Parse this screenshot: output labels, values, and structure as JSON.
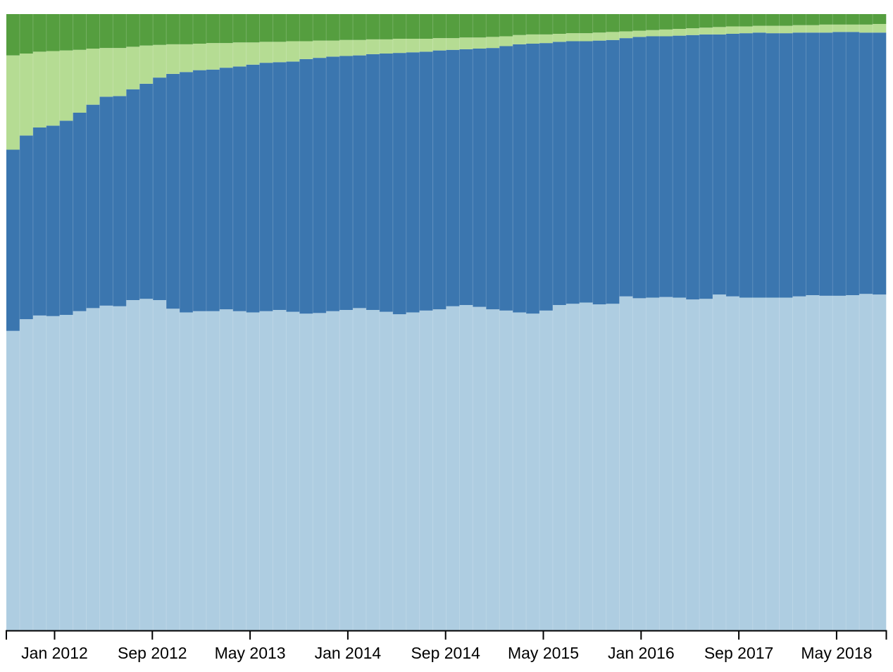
{
  "chart_data": {
    "type": "bar",
    "stacked": true,
    "normalized": true,
    "ylim": [
      0,
      1
    ],
    "x_range": [
      "2011-09",
      "2018-10"
    ],
    "x_ticks": [
      "Jan 2012",
      "Sep 2012",
      "May 2013",
      "Jan 2014",
      "Sep 2014",
      "May 2015",
      "Jan 2016",
      "Sep 2017",
      "May 2018"
    ],
    "y_axis_visible": false,
    "grid": false,
    "legend": "none",
    "colors": [
      "#aecde1",
      "#3b76af",
      "#b5dc93",
      "#559e3f"
    ],
    "stack_order": [
      "light-blue (bottom)",
      "dark-blue",
      "light-green",
      "dark-green (top)"
    ],
    "top_boundaries": {
      "description": "cumulative shares (fraction of column height) at top of each lower layer, one value per bar, 66 bars",
      "light_blue": [
        0.486,
        0.505,
        0.511,
        0.51,
        0.512,
        0.518,
        0.523,
        0.527,
        0.526,
        0.536,
        0.538,
        0.536,
        0.522,
        0.516,
        0.518,
        0.518,
        0.521,
        0.518,
        0.516,
        0.518,
        0.52,
        0.517,
        0.514,
        0.515,
        0.518,
        0.52,
        0.523,
        0.52,
        0.517,
        0.513,
        0.516,
        0.519,
        0.521,
        0.526,
        0.528,
        0.525,
        0.521,
        0.519,
        0.516,
        0.514,
        0.519,
        0.528,
        0.53,
        0.532,
        0.529,
        0.53,
        0.542,
        0.539,
        0.54,
        0.541,
        0.54,
        0.537,
        0.538,
        0.545,
        0.542,
        0.54,
        0.54,
        0.54,
        0.54,
        0.542,
        0.544,
        0.543,
        0.543,
        0.544,
        0.546,
        0.545
      ],
      "dark_blue": [
        0.78,
        0.803,
        0.816,
        0.819,
        0.827,
        0.84,
        0.853,
        0.866,
        0.867,
        0.878,
        0.887,
        0.897,
        0.903,
        0.906,
        0.909,
        0.91,
        0.913,
        0.915,
        0.918,
        0.921,
        0.922,
        0.923,
        0.927,
        0.929,
        0.931,
        0.932,
        0.933,
        0.935,
        0.936,
        0.937,
        0.938,
        0.939,
        0.941,
        0.942,
        0.943,
        0.944,
        0.945,
        0.948,
        0.951,
        0.952,
        0.953,
        0.955,
        0.956,
        0.956,
        0.957,
        0.958,
        0.961,
        0.963,
        0.964,
        0.964,
        0.965,
        0.966,
        0.967,
        0.967,
        0.968,
        0.969,
        0.97,
        0.969,
        0.969,
        0.97,
        0.97,
        0.97,
        0.971,
        0.971,
        0.97,
        0.97
      ],
      "light_green": [
        0.933,
        0.936,
        0.939,
        0.94,
        0.941,
        0.942,
        0.944,
        0.945,
        0.945,
        0.947,
        0.949,
        0.95,
        0.951,
        0.951,
        0.952,
        0.953,
        0.953,
        0.954,
        0.954,
        0.955,
        0.955,
        0.956,
        0.956,
        0.957,
        0.957,
        0.958,
        0.958,
        0.959,
        0.959,
        0.96,
        0.96,
        0.96,
        0.961,
        0.961,
        0.962,
        0.962,
        0.963,
        0.964,
        0.966,
        0.967,
        0.967,
        0.968,
        0.969,
        0.969,
        0.97,
        0.971,
        0.972,
        0.973,
        0.974,
        0.975,
        0.976,
        0.977,
        0.978,
        0.979,
        0.98,
        0.98,
        0.981,
        0.981,
        0.981,
        0.982,
        0.982,
        0.983,
        0.983,
        0.983,
        0.983,
        0.984
      ]
    }
  }
}
